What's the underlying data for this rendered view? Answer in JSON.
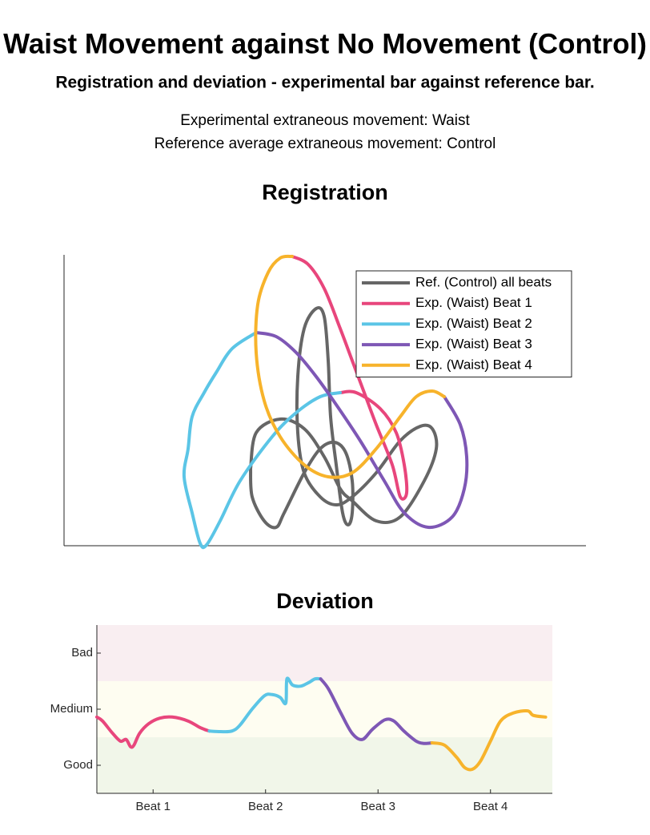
{
  "title": "Waist Movement against No Movement (Control)",
  "subtitle": "Registration and deviation - experimental bar against reference bar.",
  "notes": [
    "Experimental extraneous movement: Waist",
    "Reference average extraneous movement: Control"
  ],
  "chart_data": [
    {
      "type": "line",
      "title": "Registration",
      "xlim": [
        0,
        652
      ],
      "ylim": [
        0,
        363
      ],
      "legend": "upper right",
      "series": [
        {
          "name": "Ref. (Control) all beats",
          "color": "#666666",
          "x": [
            233,
            240,
            270,
            300,
            325,
            345,
            360,
            390,
            420,
            450,
            465,
            460,
            445,
            420,
            390,
            360,
            340,
            320,
            300,
            292,
            292,
            300,
            315,
            325,
            330,
            333,
            340,
            348,
            355,
            360,
            360,
            352,
            338,
            320,
            300,
            275,
            265,
            250,
            235,
            233
          ],
          "values": [
            96,
            141,
            158,
            146,
            111,
            71,
            56,
            31,
            36,
            81,
            121,
            146,
            149,
            131,
            91,
            61,
            51,
            61,
            91,
            141,
            211,
            271,
            296,
            286,
            231,
            161,
            101,
            41,
            26,
            41,
            81,
            116,
            129,
            121,
            91,
            41,
            23,
            31,
            61,
            96
          ]
        },
        {
          "name": "Exp. (Waist) Beat 1",
          "color": "#e8467c",
          "x": [
            285,
            305,
            325,
            345,
            360,
            375,
            390,
            410,
            420,
            428,
            425,
            415,
            395,
            365,
            345
          ],
          "values": [
            361,
            351,
            321,
            271,
            231,
            191,
            151,
            101,
            61,
            66,
            101,
            141,
            171,
            191,
            191
          ]
        },
        {
          "name": "Exp. (Waist) Beat 2",
          "color": "#5bc5e6",
          "x": [
            345,
            320,
            290,
            260,
            220,
            195,
            178,
            170,
            160,
            150,
            155,
            160,
            175,
            190,
            210,
            240
          ],
          "values": [
            191,
            186,
            166,
            136,
            81,
            31,
            1,
            3,
            41,
            86,
            121,
            161,
            191,
            216,
            246,
            266
          ]
        },
        {
          "name": "Exp. (Waist) Beat 3",
          "color": "#7e57b5",
          "x": [
            240,
            265,
            290,
            315,
            340,
            370,
            400,
            425,
            455,
            485,
            500,
            503,
            495,
            475
          ],
          "values": [
            266,
            261,
            241,
            211,
            176,
            131,
            81,
            41,
            23,
            36,
            71,
            111,
            151,
            186
          ]
        },
        {
          "name": "Exp. (Waist) Beat 4",
          "color": "#f7b32b",
          "x": [
            475,
            460,
            440,
            420,
            390,
            360,
            330,
            300,
            270,
            250,
            240,
            242,
            255,
            270,
            285
          ],
          "values": [
            186,
            193,
            186,
            161,
            121,
            91,
            86,
            101,
            136,
            181,
            241,
            301,
            341,
            359,
            361
          ]
        }
      ]
    },
    {
      "type": "line",
      "title": "Deviation",
      "xlim": [
        0,
        4.05
      ],
      "ylim": [
        0,
        3
      ],
      "xticks": [
        {
          "value": 0.5,
          "label": "Beat 1"
        },
        {
          "value": 1.5,
          "label": "Beat 2"
        },
        {
          "value": 2.5,
          "label": "Beat 3"
        },
        {
          "value": 3.5,
          "label": "Beat 4"
        }
      ],
      "yticks": [
        {
          "value": 0.5,
          "label": "Good"
        },
        {
          "value": 1.5,
          "label": "Medium"
        },
        {
          "value": 2.5,
          "label": "Bad"
        }
      ],
      "bands": [
        {
          "range": [
            0,
            1
          ],
          "color": "#f1f6e9"
        },
        {
          "range": [
            1,
            2
          ],
          "color": "#fefdf1"
        },
        {
          "range": [
            2,
            3
          ],
          "color": "#f9eef1"
        }
      ],
      "series": [
        {
          "color": "#e8467c",
          "x": [
            0,
            0.05,
            0.14,
            0.21,
            0.26,
            0.3,
            0.33,
            0.38,
            0.46,
            0.56,
            0.67,
            0.81,
            0.92,
            1.0
          ],
          "values": [
            1.36,
            1.29,
            1.07,
            0.93,
            0.96,
            0.83,
            0.86,
            1.07,
            1.24,
            1.34,
            1.36,
            1.29,
            1.17,
            1.11
          ]
        },
        {
          "color": "#5bc5e6",
          "x": [
            1.0,
            1.1,
            1.2,
            1.27,
            1.38,
            1.49,
            1.56,
            1.63,
            1.68,
            1.69,
            1.74,
            1.81,
            1.88,
            1.94,
            1.99
          ],
          "values": [
            1.11,
            1.1,
            1.11,
            1.21,
            1.5,
            1.74,
            1.76,
            1.71,
            1.61,
            2.04,
            1.93,
            1.91,
            1.97,
            2.04,
            2.04
          ]
        },
        {
          "color": "#7e57b5",
          "x": [
            1.99,
            2.06,
            2.17,
            2.27,
            2.36,
            2.45,
            2.56,
            2.64,
            2.73,
            2.84,
            2.91,
            2.98
          ],
          "values": [
            2.04,
            1.86,
            1.43,
            1.07,
            0.96,
            1.14,
            1.31,
            1.29,
            1.11,
            0.93,
            0.89,
            0.9
          ]
        },
        {
          "color": "#f7b32b",
          "x": [
            2.98,
            3.09,
            3.2,
            3.27,
            3.34,
            3.41,
            3.5,
            3.59,
            3.7,
            3.83,
            3.88,
            3.99
          ],
          "values": [
            0.9,
            0.86,
            0.64,
            0.46,
            0.43,
            0.57,
            0.93,
            1.29,
            1.43,
            1.47,
            1.39,
            1.36
          ]
        }
      ]
    }
  ]
}
